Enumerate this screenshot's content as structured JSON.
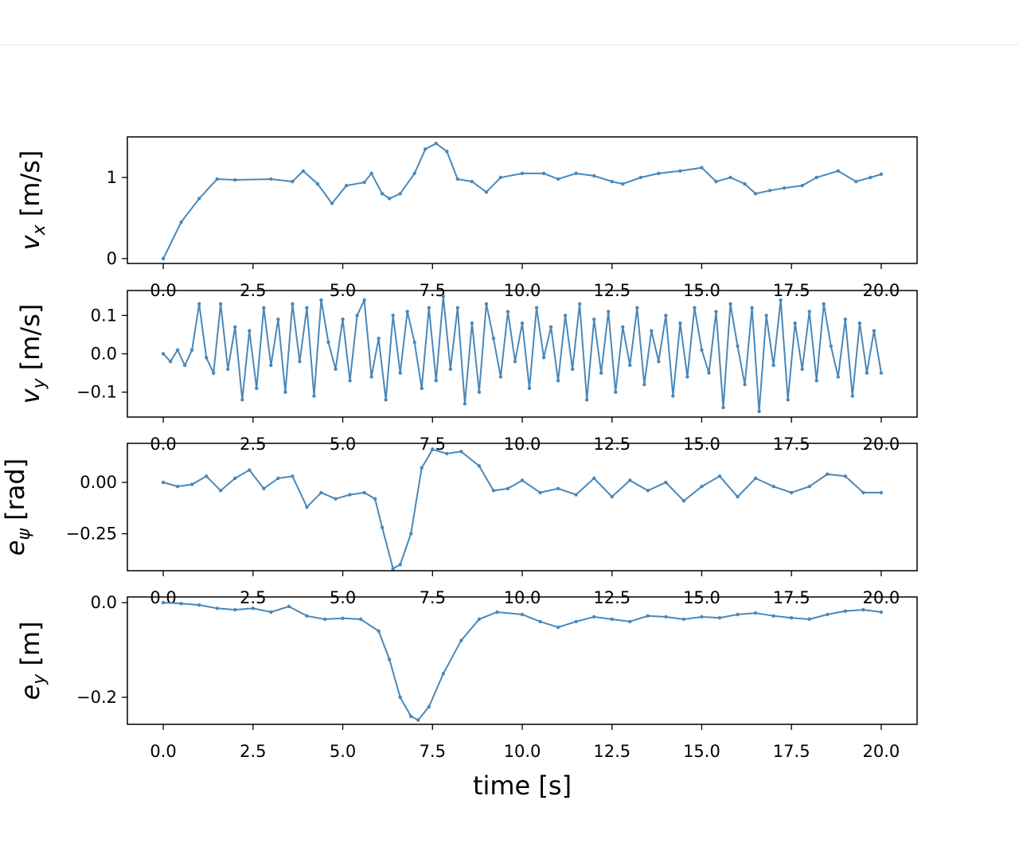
{
  "chart_data": [
    {
      "type": "line",
      "ylabel_symbol": "v",
      "ylabel_sub": "x",
      "ylabel_unit": "[m/s]",
      "xlim": [
        -1,
        21
      ],
      "ylim": [
        -0.06,
        1.5
      ],
      "yticks": [
        0,
        1
      ],
      "ytick_labels": [
        "0",
        "1"
      ],
      "xticks": [
        0,
        2.5,
        5,
        7.5,
        10,
        12.5,
        15,
        17.5,
        20
      ],
      "xtick_labels": [
        "0.0",
        "2.5",
        "5.0",
        "7.5",
        "10.0",
        "12.5",
        "15.0",
        "17.5",
        "20.0"
      ],
      "series": [
        {
          "color": "#4a88b9",
          "x": [
            0,
            0.5,
            1,
            1.5,
            2,
            3,
            3.6,
            3.9,
            4.3,
            4.7,
            5.1,
            5.6,
            5.8,
            6.1,
            6.3,
            6.6,
            7,
            7.3,
            7.6,
            7.9,
            8.2,
            8.6,
            9,
            9.4,
            10,
            10.6,
            11,
            11.5,
            12,
            12.5,
            12.8,
            13.3,
            13.8,
            14.4,
            15,
            15.4,
            15.8,
            16.2,
            16.5,
            16.9,
            17.3,
            17.8,
            18.2,
            18.8,
            19.3,
            19.7,
            20
          ],
          "y": [
            0,
            0.45,
            0.74,
            0.98,
            0.97,
            0.98,
            0.95,
            1.08,
            0.92,
            0.68,
            0.9,
            0.94,
            1.05,
            0.8,
            0.74,
            0.8,
            1.05,
            1.35,
            1.42,
            1.32,
            0.98,
            0.95,
            0.82,
            1.0,
            1.05,
            1.05,
            0.98,
            1.05,
            1.02,
            0.95,
            0.92,
            1.0,
            1.05,
            1.08,
            1.12,
            0.95,
            1.0,
            0.92,
            0.8,
            0.84,
            0.87,
            0.9,
            1.0,
            1.08,
            0.95,
            1.0,
            1.04
          ]
        }
      ]
    },
    {
      "type": "line",
      "ylabel_symbol": "v",
      "ylabel_sub": "y",
      "ylabel_unit": "[m/s]",
      "xlim": [
        -1,
        21
      ],
      "ylim": [
        -0.165,
        0.165
      ],
      "yticks": [
        -0.1,
        0,
        0.1
      ],
      "ytick_labels": [
        "−0.1",
        "0.0",
        "0.1"
      ],
      "xticks": [
        0,
        2.5,
        5,
        7.5,
        10,
        12.5,
        15,
        17.5,
        20
      ],
      "xtick_labels": [
        "0.0",
        "2.5",
        "5.0",
        "7.5",
        "10.0",
        "12.5",
        "15.0",
        "17.5",
        "20.0"
      ],
      "series": [
        {
          "color": "#4a88b9",
          "x": [
            0,
            0.2,
            0.4,
            0.6,
            0.8,
            1,
            1.2,
            1.4,
            1.6,
            1.8,
            2,
            2.2,
            2.4,
            2.6,
            2.8,
            3,
            3.2,
            3.4,
            3.6,
            3.8,
            4,
            4.2,
            4.4,
            4.6,
            4.8,
            5,
            5.2,
            5.4,
            5.6,
            5.8,
            6,
            6.2,
            6.4,
            6.6,
            6.8,
            7,
            7.2,
            7.4,
            7.6,
            7.8,
            8,
            8.2,
            8.4,
            8.6,
            8.8,
            9,
            9.2,
            9.4,
            9.6,
            9.8,
            10,
            10.2,
            10.4,
            10.6,
            10.8,
            11,
            11.2,
            11.4,
            11.6,
            11.8,
            12,
            12.2,
            12.4,
            12.6,
            12.8,
            13,
            13.2,
            13.4,
            13.6,
            13.8,
            14,
            14.2,
            14.4,
            14.6,
            14.8,
            15,
            15.2,
            15.4,
            15.6,
            15.8,
            16,
            16.2,
            16.4,
            16.6,
            16.8,
            17,
            17.2,
            17.4,
            17.6,
            17.8,
            18,
            18.2,
            18.4,
            18.6,
            18.8,
            19,
            19.2,
            19.4,
            19.6,
            19.8,
            20
          ],
          "y": [
            0,
            -0.02,
            0.01,
            -0.03,
            0.01,
            0.13,
            -0.01,
            -0.05,
            0.13,
            -0.04,
            0.07,
            -0.12,
            0.06,
            -0.09,
            0.12,
            -0.03,
            0.09,
            -0.1,
            0.13,
            -0.02,
            0.12,
            -0.11,
            0.14,
            0.03,
            -0.04,
            0.09,
            -0.07,
            0.1,
            0.14,
            -0.06,
            0.04,
            -0.12,
            0.1,
            -0.05,
            0.11,
            0.03,
            -0.09,
            0.12,
            -0.07,
            0.15,
            -0.04,
            0.12,
            -0.13,
            0.08,
            -0.1,
            0.13,
            0.04,
            -0.06,
            0.11,
            -0.02,
            0.08,
            -0.09,
            0.12,
            -0.01,
            0.07,
            -0.07,
            0.1,
            -0.04,
            0.13,
            -0.12,
            0.09,
            -0.05,
            0.11,
            -0.1,
            0.07,
            -0.03,
            0.12,
            -0.08,
            0.06,
            -0.02,
            0.1,
            -0.11,
            0.08,
            -0.06,
            0.12,
            0.01,
            -0.05,
            0.11,
            -0.14,
            0.13,
            0.02,
            -0.08,
            0.12,
            -0.15,
            0.1,
            -0.03,
            0.14,
            -0.12,
            0.08,
            -0.04,
            0.11,
            -0.07,
            0.13,
            0.02,
            -0.06,
            0.09,
            -0.11,
            0.08,
            -0.05,
            0.06,
            -0.05
          ]
        }
      ]
    },
    {
      "type": "line",
      "ylabel_symbol": "e",
      "ylabel_sub": "ψ",
      "ylabel_unit": "[rad]",
      "xlim": [
        -1,
        21
      ],
      "ylim": [
        -0.43,
        0.19
      ],
      "yticks": [
        -0.25,
        0
      ],
      "ytick_labels": [
        "−0.25",
        "0.00"
      ],
      "xticks": [
        0,
        2.5,
        5,
        7.5,
        10,
        12.5,
        15,
        17.5,
        20
      ],
      "xtick_labels": [
        "0.0",
        "2.5",
        "5.0",
        "7.5",
        "10.0",
        "12.5",
        "15.0",
        "17.5",
        "20.0"
      ],
      "series": [
        {
          "color": "#4a88b9",
          "x": [
            0,
            0.4,
            0.8,
            1.2,
            1.6,
            2,
            2.4,
            2.8,
            3.2,
            3.6,
            4,
            4.4,
            4.8,
            5.2,
            5.6,
            5.9,
            6.1,
            6.4,
            6.6,
            6.9,
            7.2,
            7.5,
            7.9,
            8.3,
            8.8,
            9.2,
            9.6,
            10,
            10.5,
            11,
            11.5,
            12,
            12.5,
            13,
            13.5,
            14,
            14.5,
            15,
            15.5,
            16,
            16.5,
            17,
            17.5,
            18,
            18.5,
            19,
            19.5,
            20
          ],
          "y": [
            0,
            -0.02,
            -0.01,
            0.03,
            -0.04,
            0.02,
            0.06,
            -0.03,
            0.02,
            0.03,
            -0.12,
            -0.05,
            -0.08,
            -0.06,
            -0.05,
            -0.08,
            -0.22,
            -0.42,
            -0.4,
            -0.25,
            0.07,
            0.16,
            0.14,
            0.15,
            0.08,
            -0.04,
            -0.03,
            0.01,
            -0.05,
            -0.03,
            -0.06,
            0.02,
            -0.07,
            0.01,
            -0.04,
            0.0,
            -0.09,
            -0.02,
            0.03,
            -0.07,
            0.02,
            -0.02,
            -0.05,
            -0.02,
            0.04,
            0.03,
            -0.05,
            -0.05
          ]
        }
      ]
    },
    {
      "type": "line",
      "ylabel_symbol": "e",
      "ylabel_sub": "y",
      "ylabel_unit": "[m]",
      "xlabel": "time [s]",
      "xlim": [
        -1,
        21
      ],
      "ylim": [
        -0.257,
        0.012
      ],
      "yticks": [
        -0.2,
        0
      ],
      "ytick_labels": [
        "−0.2",
        "0.0"
      ],
      "xticks": [
        0,
        2.5,
        5,
        7.5,
        10,
        12.5,
        15,
        17.5,
        20
      ],
      "xtick_labels": [
        "0.0",
        "2.5",
        "5.0",
        "7.5",
        "10.0",
        "12.5",
        "15.0",
        "17.5",
        "20.0"
      ],
      "series": [
        {
          "color": "#4a88b9",
          "x": [
            0,
            0.5,
            1,
            1.5,
            2,
            2.5,
            3,
            3.5,
            4,
            4.5,
            5,
            5.5,
            6,
            6.3,
            6.6,
            6.9,
            7.1,
            7.4,
            7.8,
            8.3,
            8.8,
            9.3,
            10,
            10.5,
            11,
            11.5,
            12,
            12.5,
            13,
            13.5,
            14,
            14.5,
            15,
            15.5,
            16,
            16.5,
            17,
            17.5,
            18,
            18.5,
            19,
            19.5,
            20
          ],
          "y": [
            0,
            -0.002,
            -0.005,
            -0.012,
            -0.015,
            -0.012,
            -0.02,
            -0.008,
            -0.028,
            -0.035,
            -0.033,
            -0.035,
            -0.06,
            -0.12,
            -0.2,
            -0.24,
            -0.248,
            -0.22,
            -0.15,
            -0.08,
            -0.035,
            -0.02,
            -0.025,
            -0.04,
            -0.052,
            -0.04,
            -0.03,
            -0.035,
            -0.04,
            -0.028,
            -0.03,
            -0.035,
            -0.03,
            -0.032,
            -0.025,
            -0.022,
            -0.028,
            -0.032,
            -0.035,
            -0.025,
            -0.018,
            -0.015,
            -0.02
          ]
        }
      ]
    }
  ]
}
